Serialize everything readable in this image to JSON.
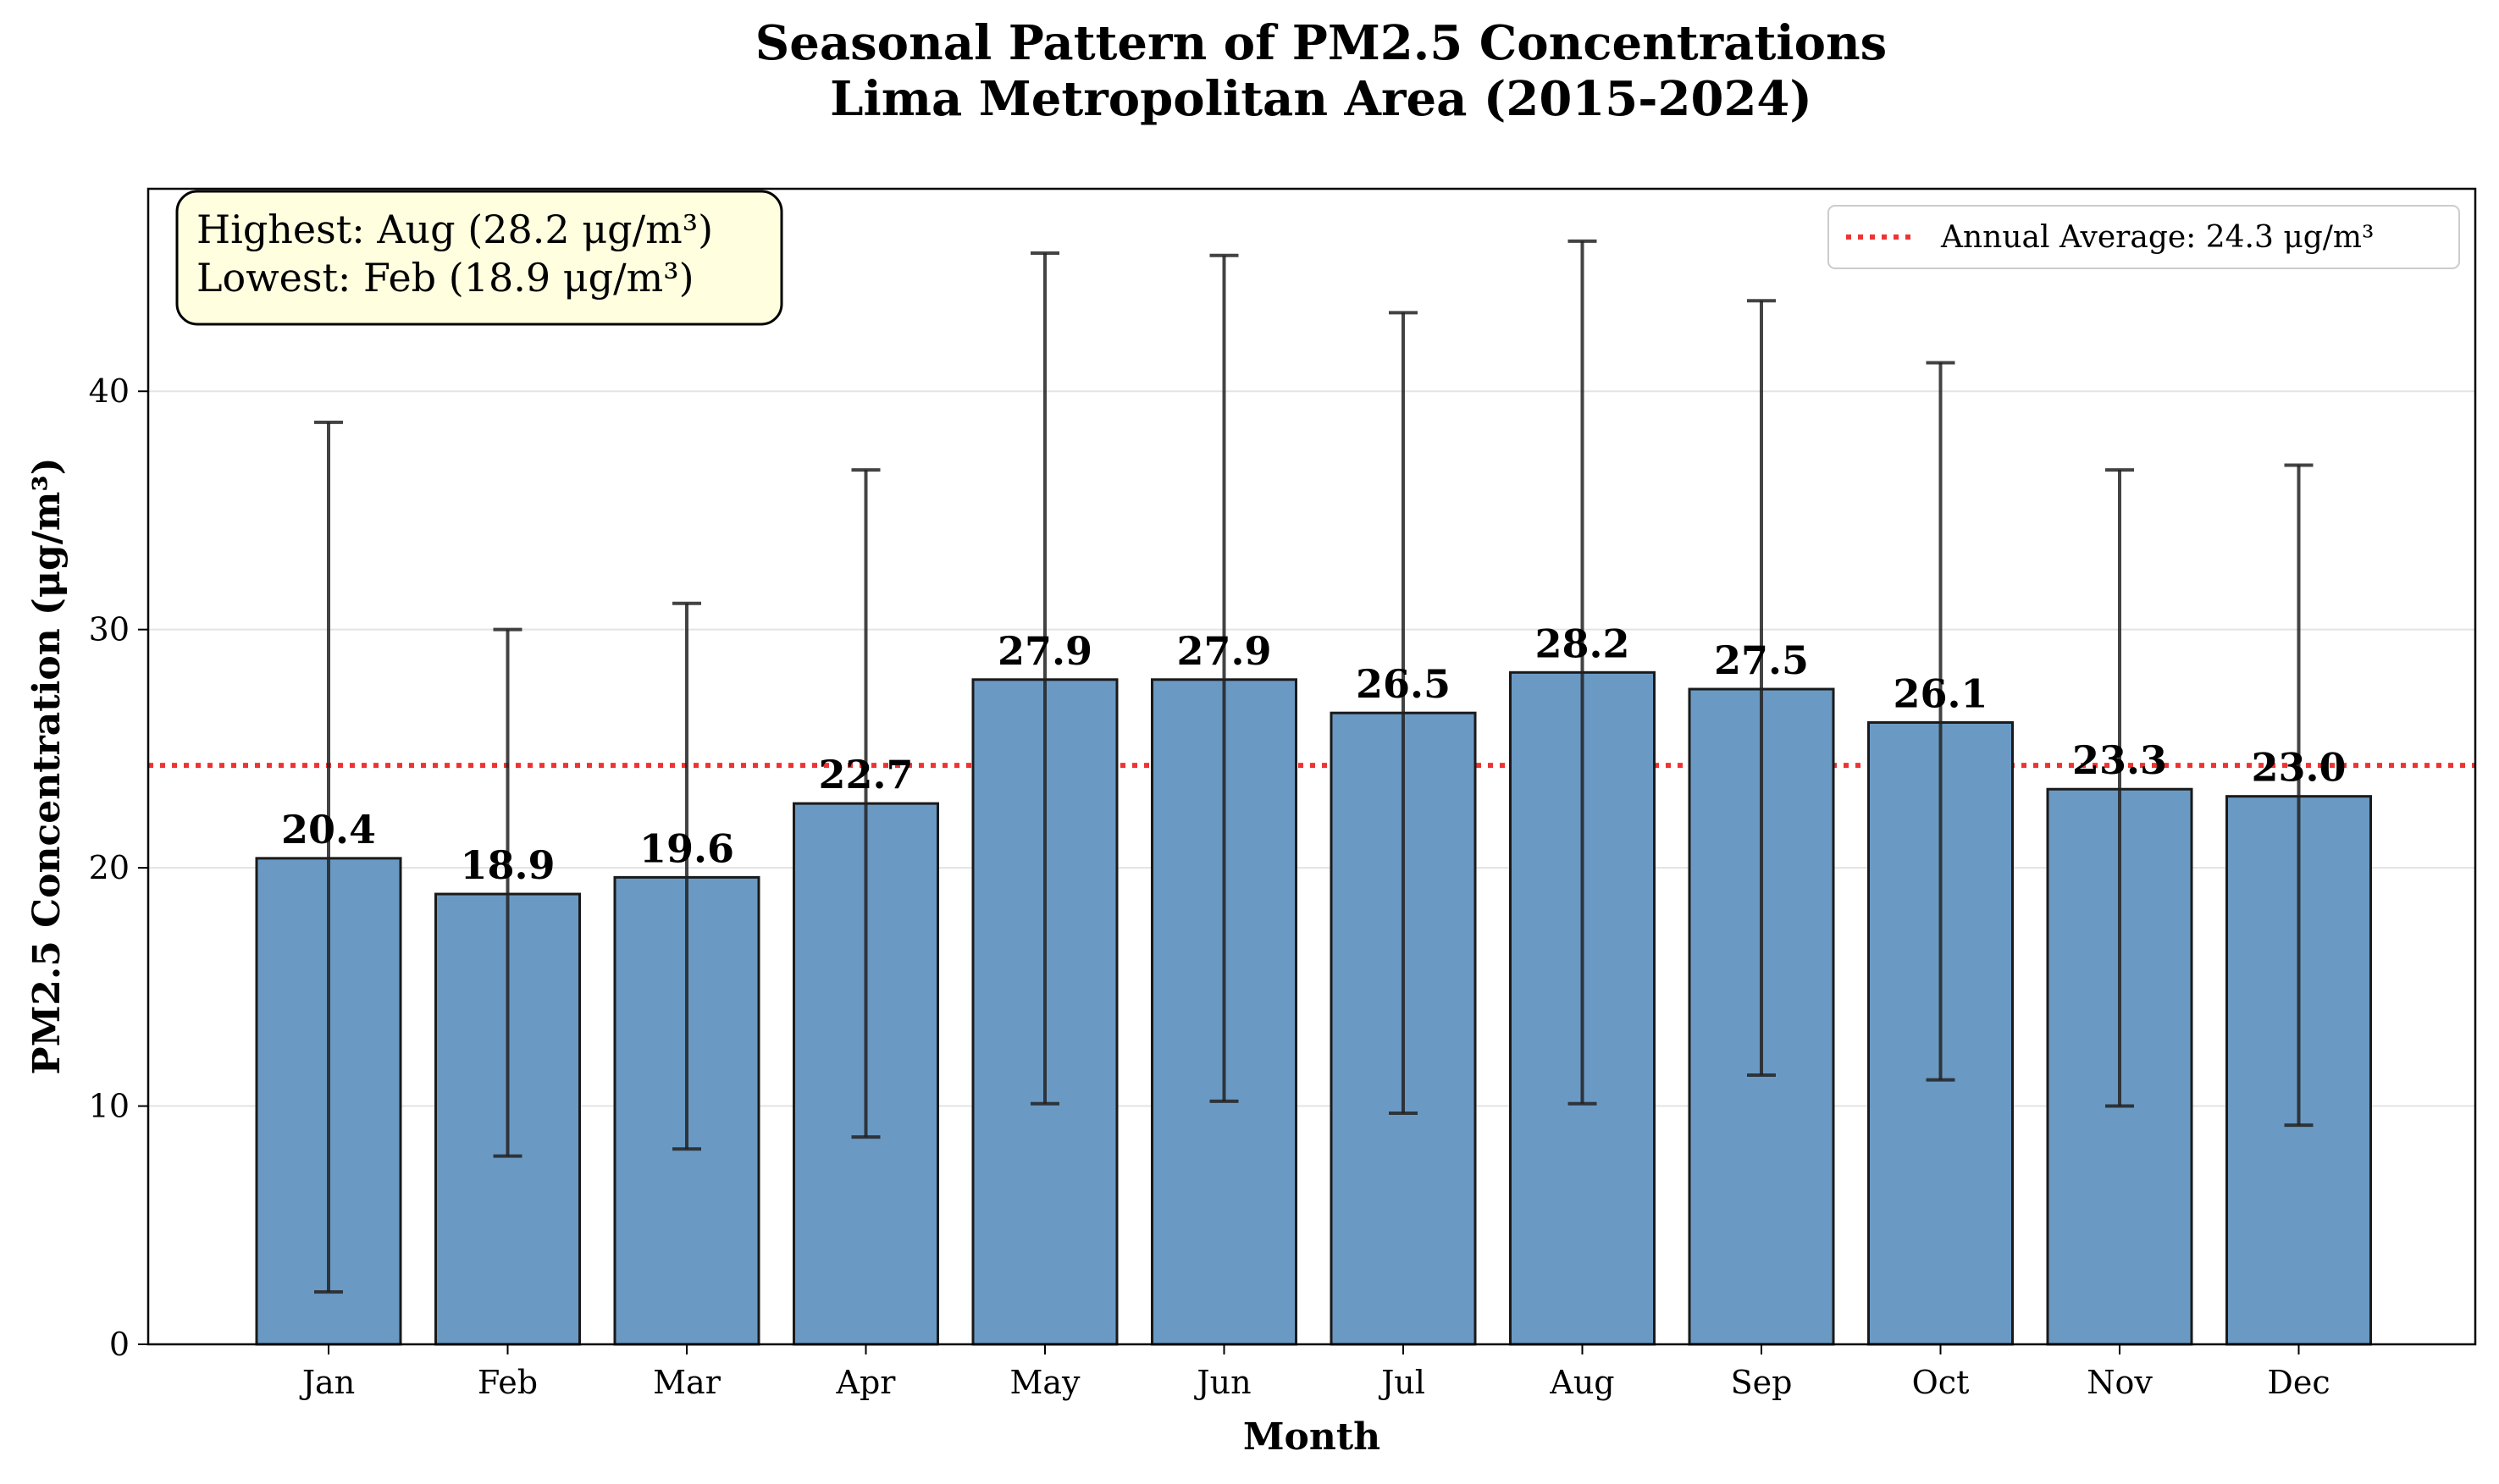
{
  "chart_data": {
    "type": "bar",
    "title": [
      "Seasonal Pattern of PM2.5 Concentrations",
      "Lima Metropolitan Area (2015-2024)"
    ],
    "xlabel": "Month",
    "ylabel": "PM2.5 Concentration (μg/m³)",
    "categories": [
      "Jan",
      "Feb",
      "Mar",
      "Apr",
      "May",
      "Jun",
      "Jul",
      "Aug",
      "Sep",
      "Oct",
      "Nov",
      "Dec"
    ],
    "values": [
      20.4,
      18.9,
      19.6,
      22.7,
      27.9,
      27.9,
      26.5,
      28.2,
      27.5,
      26.1,
      23.3,
      23.0
    ],
    "value_labels": [
      "20.4",
      "18.9",
      "19.6",
      "22.7",
      "27.9",
      "27.9",
      "26.5",
      "28.2",
      "27.5",
      "26.1",
      "23.3",
      "23.0"
    ],
    "error_low": [
      2.2,
      7.9,
      8.2,
      8.7,
      10.1,
      10.2,
      9.7,
      10.1,
      11.3,
      11.1,
      10.0,
      9.2
    ],
    "error_high": [
      38.7,
      30.0,
      31.1,
      36.7,
      45.8,
      45.7,
      43.3,
      46.3,
      43.8,
      41.2,
      36.7,
      36.9
    ],
    "ylim": [
      0,
      48.5
    ],
    "yticks": [
      "0",
      "10",
      "20",
      "30",
      "40"
    ],
    "reference_line": {
      "value": 24.3,
      "label": "Annual Average: 24.3 μg/m³",
      "color": "#ee3333",
      "style": "dotted"
    },
    "annotation": [
      "Highest: Aug (28.2 μg/m³)",
      "Lowest: Feb (18.9 μg/m³)"
    ],
    "legend_position": "top-right",
    "grid": "horizontal",
    "bar_color": "#6a9ac4",
    "edge_color": "#1a1a1a",
    "errorbar_color": "#222222",
    "annotation_bg": "#ffffe0"
  }
}
